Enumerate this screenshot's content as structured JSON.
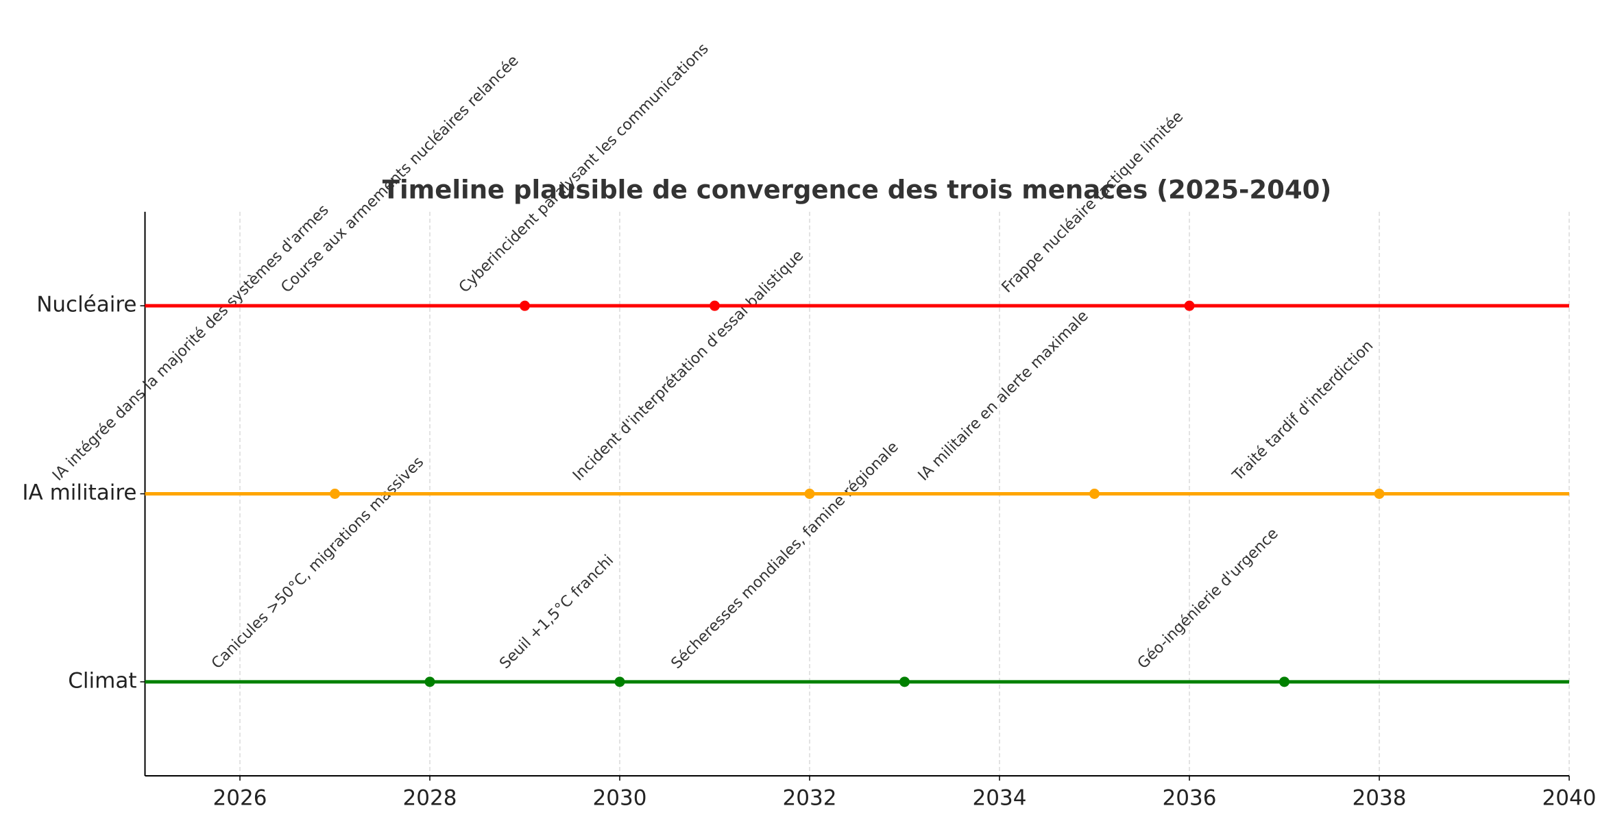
{
  "chart_data": {
    "type": "timeline",
    "title": "Timeline plausible de convergence des trois menaces (2025-2040)",
    "xlim": [
      2025,
      2040
    ],
    "xticks": [
      2026,
      2028,
      2030,
      2032,
      2034,
      2036,
      2038,
      2040
    ],
    "grid": true,
    "series": [
      {
        "name": "Climat",
        "color": "#008000",
        "values": [
          2028,
          2030,
          2033,
          2037
        ],
        "labels": [
          "Canicules >50°C, migrations massives",
          "Seuil +1,5°C franchi",
          "Sécheresses mondiales, famine régionale",
          "Géo-ingénierie d'urgence"
        ]
      },
      {
        "name": "IA militaire",
        "color": "#ffa500",
        "values": [
          2027,
          2032,
          2035,
          2038
        ],
        "labels": [
          "IA intégrée dans la majorité des systèmes d'armes",
          "Incident d'interprétation d'essai balistique",
          "IA militaire en alerte maximale",
          "Traité tardif d'interdiction"
        ]
      },
      {
        "name": "Nucléaire",
        "color": "#ff0000",
        "values": [
          2029,
          2031,
          2036
        ],
        "labels": [
          "Course aux armements nucléaires relancée",
          "Cyberincident paralysant les communications",
          "Frappe nucléaire tactique limitée"
        ]
      }
    ]
  }
}
